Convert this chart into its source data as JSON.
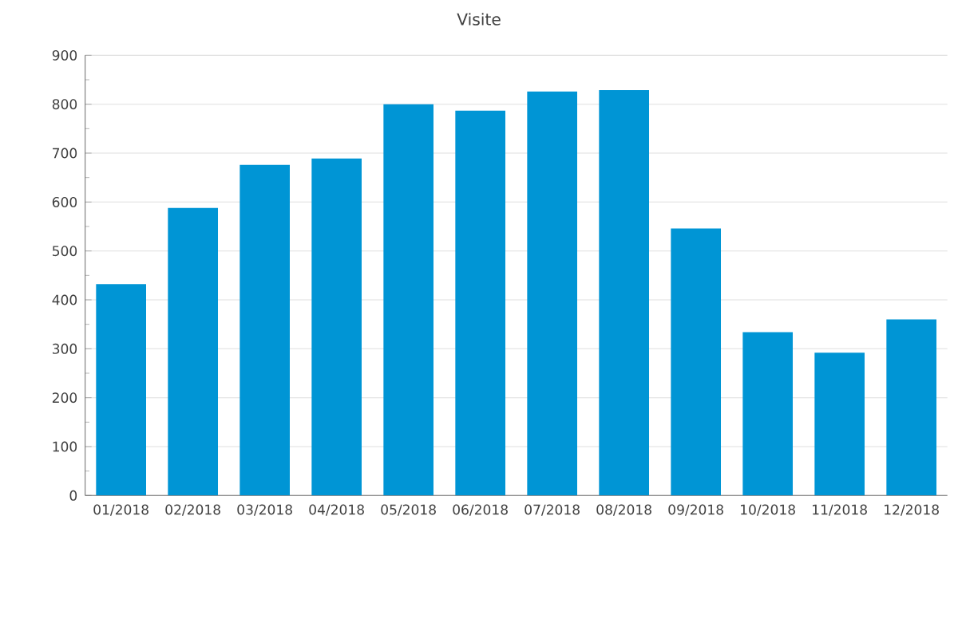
{
  "chart_data": {
    "type": "bar",
    "title": "Visite",
    "categories": [
      "01/2018",
      "02/2018",
      "03/2018",
      "04/2018",
      "05/2018",
      "06/2018",
      "07/2018",
      "08/2018",
      "09/2018",
      "10/2018",
      "11/2018",
      "12/2018"
    ],
    "values": [
      432,
      588,
      676,
      689,
      800,
      787,
      826,
      829,
      546,
      334,
      292,
      360
    ],
    "color": "#0095d5",
    "ylim": [
      0,
      900
    ],
    "yticks": [
      0,
      100,
      200,
      300,
      400,
      500,
      600,
      700,
      800,
      900
    ],
    "grid": "y"
  }
}
